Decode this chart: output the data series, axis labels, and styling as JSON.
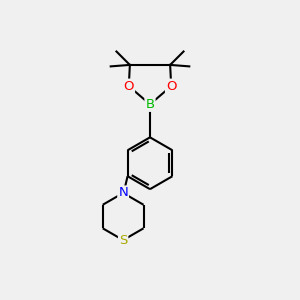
{
  "background_color": "#f0f0f0",
  "atom_colors": {
    "B": "#00bb00",
    "O": "#ff0000",
    "N": "#0000ff",
    "S": "#aaaa00"
  },
  "bond_color": "#000000",
  "line_width": 1.5,
  "font_size": 9.5
}
